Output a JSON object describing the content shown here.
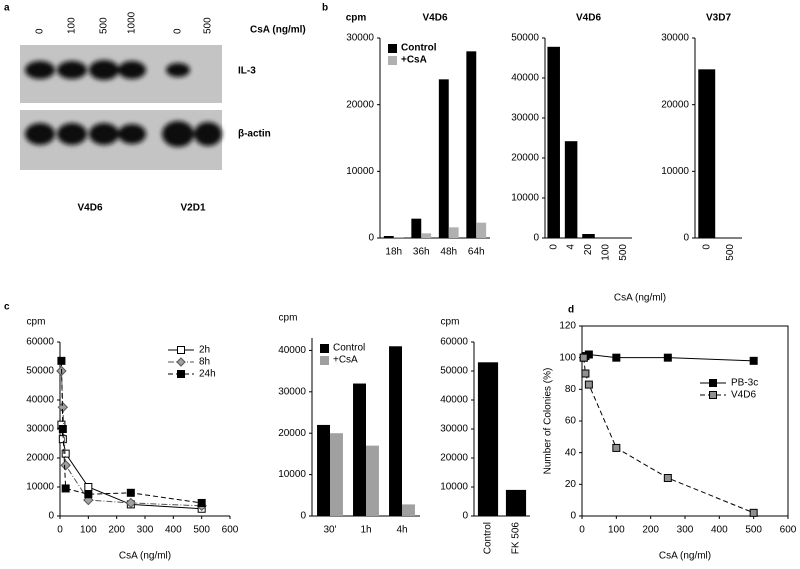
{
  "panel_labels": [
    "a",
    "b",
    "c",
    "d"
  ],
  "blot": {
    "lanes": [
      "0",
      "100",
      "500",
      "1000",
      "0",
      "500"
    ],
    "treatment": "CsA (ng/ml)",
    "bands": [
      "IL-3",
      "β-actin"
    ],
    "cell_lines": [
      "V4D6",
      "V2D1"
    ]
  },
  "chart_data": [
    {
      "type": "bar",
      "title": "V4D6",
      "ylabel": "cpm",
      "ylabel_position": "top",
      "categories": [
        "18h",
        "36h",
        "48h",
        "64h"
      ],
      "series": [
        {
          "name": "Control",
          "color": "#000000",
          "values": [
            300,
            2900,
            23800,
            28000
          ]
        },
        {
          "name": "+CsA",
          "color": "#b0b0b0",
          "values": [
            150,
            700,
            1600,
            2300
          ]
        }
      ],
      "ylim": [
        0,
        30000
      ],
      "yticks": [
        0,
        10000,
        20000,
        30000
      ],
      "legend": "upper left"
    },
    {
      "type": "bar",
      "title": "V4D6",
      "xlabel": "CsA (ng/ml)",
      "categories": [
        "0",
        "4",
        "20",
        "100",
        "500"
      ],
      "rotate_xticks": true,
      "values": [
        47800,
        24200,
        1000,
        0,
        0
      ],
      "color": "#000000",
      "ylim": [
        0,
        50000
      ],
      "yticks": [
        0,
        10000,
        20000,
        30000,
        40000,
        50000
      ]
    },
    {
      "type": "bar",
      "title": "V3D7",
      "categories": [
        "0",
        "500"
      ],
      "rotate_xticks": true,
      "values": [
        25300,
        0
      ],
      "color": "#000000",
      "ylim": [
        0,
        30000
      ],
      "yticks": [
        0,
        10000,
        20000,
        30000
      ]
    },
    {
      "type": "line",
      "ylabel": "cpm",
      "ylabel_position": "top",
      "xlabel": "CsA (ng/ml)",
      "series": [
        {
          "name": "2h",
          "color": "#000000",
          "marker": "square",
          "marker_fill": "#ffffff",
          "line_style": "solid",
          "x": [
            5,
            10,
            20,
            100,
            250,
            500
          ],
          "values": [
            31500,
            26500,
            21500,
            10000,
            4000,
            2500
          ]
        },
        {
          "name": "8h",
          "color": "#555555",
          "marker": "diamond",
          "marker_fill": "#a0a0a0",
          "line_style": "dashdot",
          "x": [
            5,
            10,
            20,
            100,
            250,
            500
          ],
          "values": [
            50000,
            37500,
            17500,
            5500,
            4500,
            3500
          ]
        },
        {
          "name": "24h",
          "color": "#000000",
          "marker": "square",
          "marker_fill": "#000000",
          "line_style": "dashed",
          "x": [
            5,
            10,
            20,
            100,
            250,
            500
          ],
          "values": [
            53500,
            30000,
            9500,
            7500,
            8000,
            4500
          ]
        }
      ],
      "xlim": [
        0,
        600
      ],
      "xticks": [
        0,
        100,
        200,
        300,
        400,
        500,
        600
      ],
      "ylim": [
        0,
        60000
      ],
      "yticks": [
        0,
        10000,
        20000,
        30000,
        40000,
        50000,
        60000
      ],
      "legend": "upper right"
    },
    {
      "type": "bar",
      "ylabel": "cpm",
      "ylabel_position": "top",
      "categories": [
        "30'",
        "1h",
        "4h"
      ],
      "series": [
        {
          "name": "Control",
          "color": "#000000",
          "values": [
            22000,
            32000,
            41000
          ]
        },
        {
          "name": "+CsA",
          "color": "#a0a0a0",
          "values": [
            20000,
            17000,
            2800
          ]
        }
      ],
      "ylim": [
        0,
        43000
      ],
      "yticks": [
        0,
        10000,
        20000,
        30000,
        40000
      ],
      "legend": "upper left"
    },
    {
      "type": "bar",
      "ylabel": "cpm",
      "ylabel_position": "top",
      "categories": [
        "Control",
        "FK 506"
      ],
      "rotate_xticks": true,
      "values": [
        53000,
        9000
      ],
      "color": "#000000",
      "ylim": [
        0,
        60000
      ],
      "yticks": [
        0,
        10000,
        20000,
        30000,
        40000,
        50000,
        60000
      ]
    },
    {
      "type": "line",
      "ylabel": "Number of Colonies (%)",
      "ylabel_position": "side",
      "xlabel": "CsA (ng/ml)",
      "frame": true,
      "series": [
        {
          "name": "PB-3c",
          "color": "#000000",
          "marker": "square",
          "marker_fill": "#000000",
          "line_style": "solid",
          "x": [
            5,
            10,
            20,
            100,
            250,
            500
          ],
          "values": [
            100,
            101,
            102,
            100,
            100,
            98
          ]
        },
        {
          "name": "V4D6",
          "color": "#000000",
          "marker": "square",
          "marker_fill": "#909090",
          "line_style": "dashed",
          "x": [
            5,
            10,
            20,
            100,
            250,
            500
          ],
          "values": [
            100,
            90,
            83,
            43,
            24,
            2
          ]
        }
      ],
      "xlim": [
        0,
        600
      ],
      "xticks": [
        0,
        100,
        200,
        300,
        400,
        500,
        600
      ],
      "ylim": [
        0,
        120
      ],
      "yticks": [
        0,
        20,
        40,
        60,
        80,
        100,
        120
      ],
      "legend": "center right"
    }
  ]
}
